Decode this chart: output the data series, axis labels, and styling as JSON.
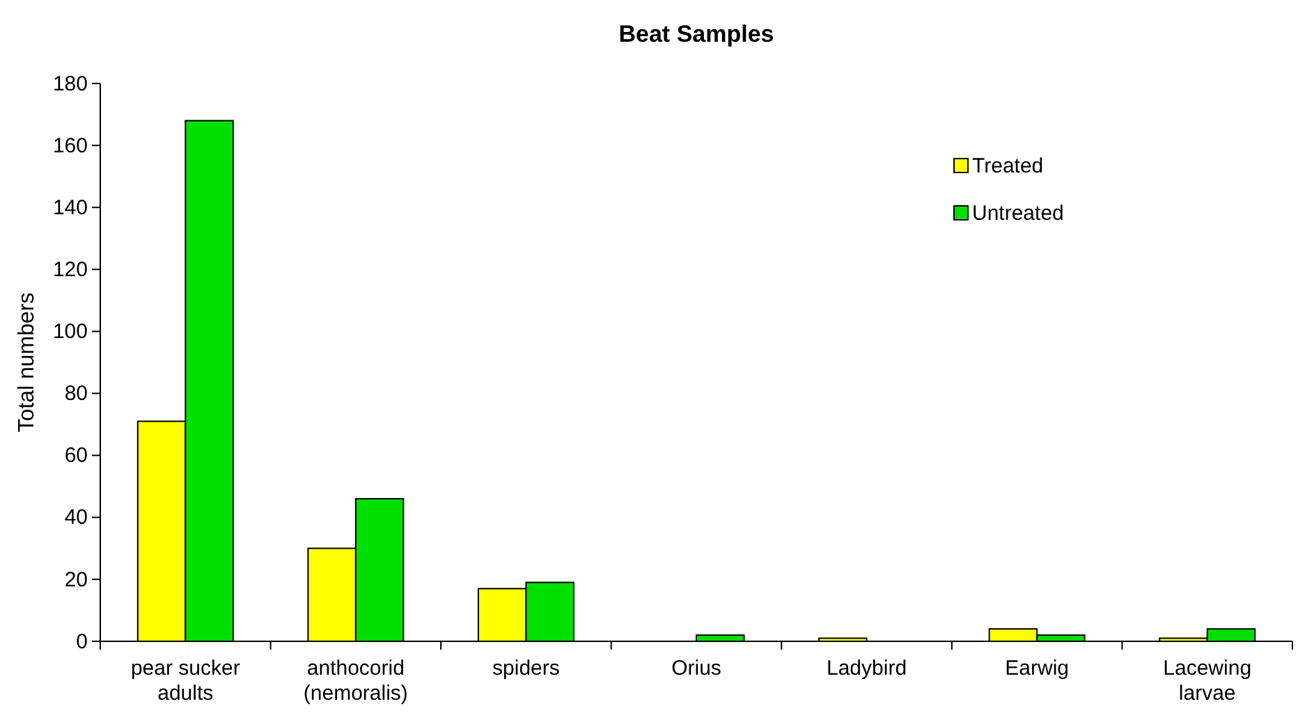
{
  "chart_data": {
    "type": "bar",
    "title": "Beat Samples",
    "ylabel": "Total numbers",
    "categories": [
      "pear sucker adults",
      "anthocorid (nemoralis)",
      "spiders",
      "Orius",
      "Ladybird",
      "Earwig",
      "Lacewing larvae"
    ],
    "series": [
      {
        "name": "Treated",
        "color": "#ffff00",
        "values": [
          71,
          30,
          17,
          0,
          1,
          4,
          1
        ]
      },
      {
        "name": "Untreated",
        "color": "#00e000",
        "values": [
          168,
          46,
          19,
          2,
          0,
          2,
          4
        ]
      }
    ],
    "ylim": [
      0,
      180
    ],
    "yticks": [
      0,
      20,
      40,
      60,
      80,
      100,
      120,
      140,
      160,
      180
    ],
    "grid": false,
    "legend": "top right"
  }
}
